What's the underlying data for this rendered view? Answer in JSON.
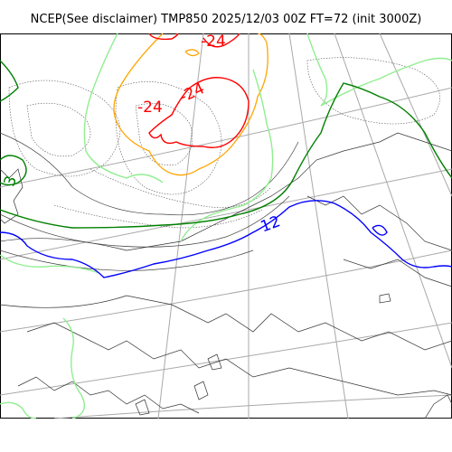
{
  "title": "NCEP(See disclaimer) TMP850 2025/12/03 00Z FT=72 (init 3000Z)",
  "contour_labels": [
    {
      "text": "-24",
      "color": "#ff0000"
    },
    {
      "text": "-24",
      "color": "#ff0000"
    },
    {
      "text": "-24",
      "color": "#ff0000"
    },
    {
      "text": "12",
      "color": "#0000ff"
    },
    {
      "text": "3",
      "color": "#008000"
    }
  ],
  "colors": {
    "cold": "#ff0000",
    "orange": "#ffa500",
    "lightgreen": "#90ee90",
    "green": "#008000",
    "blue": "#0000ff",
    "graticule": "#a9a9a9",
    "coast": "#333333"
  }
}
